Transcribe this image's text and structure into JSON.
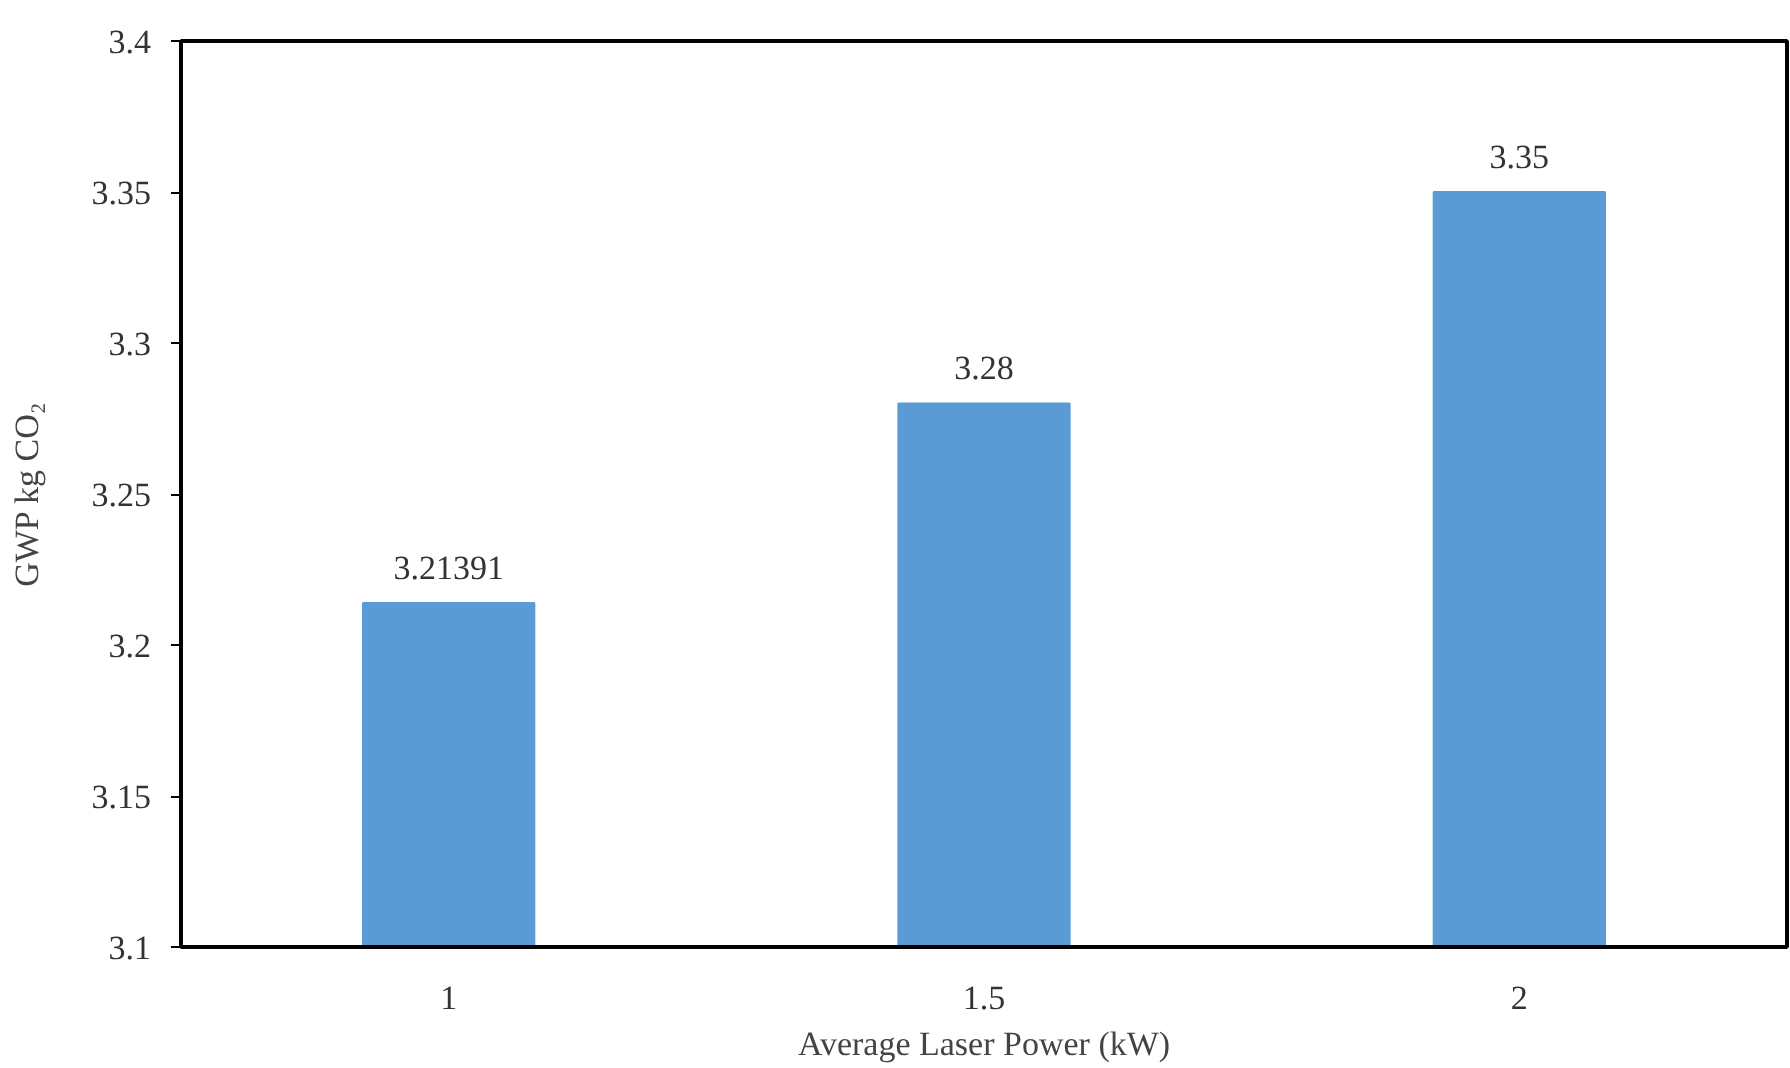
{
  "chart_data": {
    "type": "bar",
    "xlabel": "Average Laser Power (kW)",
    "ylabel": "GWP kg CO₂",
    "categories": [
      "1",
      "1.5",
      "2"
    ],
    "values": [
      3.21391,
      3.28,
      3.35
    ],
    "color": "#5b9bd5",
    "ylim": [
      3.1,
      3.4
    ],
    "yticks": [
      3.1,
      3.15,
      3.2,
      3.25,
      3.3,
      3.35,
      3.4
    ],
    "data_labels": true,
    "grid": false
  }
}
